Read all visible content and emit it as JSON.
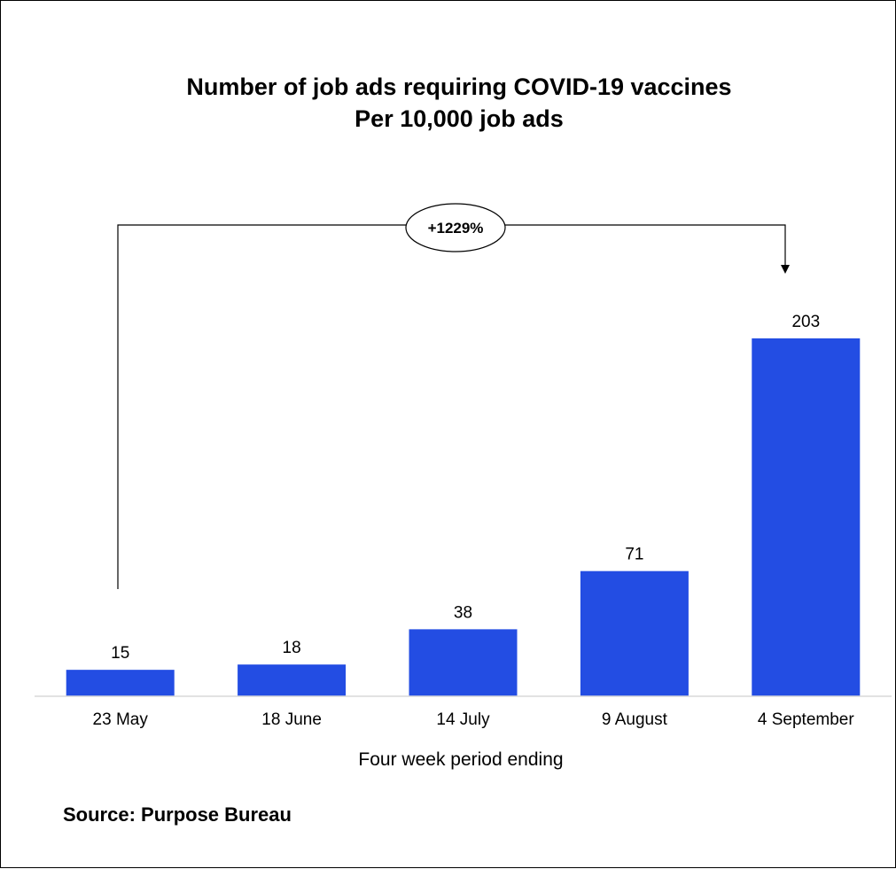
{
  "chart_data": {
    "type": "bar",
    "title": "Number of job ads requiring COVID-19 vaccines",
    "subtitle": "Per 10,000 job ads",
    "xlabel": "Four week period ending",
    "ylabel": "",
    "categories": [
      "23 May",
      "18 June",
      "14 July",
      "9 August",
      "4 September"
    ],
    "values": [
      15,
      18,
      38,
      71,
      203
    ],
    "ylim": [
      0,
      203
    ],
    "bar_color": "#234de3",
    "grid": false,
    "legend": "none",
    "annotation": {
      "text": "+1229%",
      "from_category": "23 May",
      "to_category": "4 September"
    }
  },
  "source": "Source: Purpose Bureau"
}
